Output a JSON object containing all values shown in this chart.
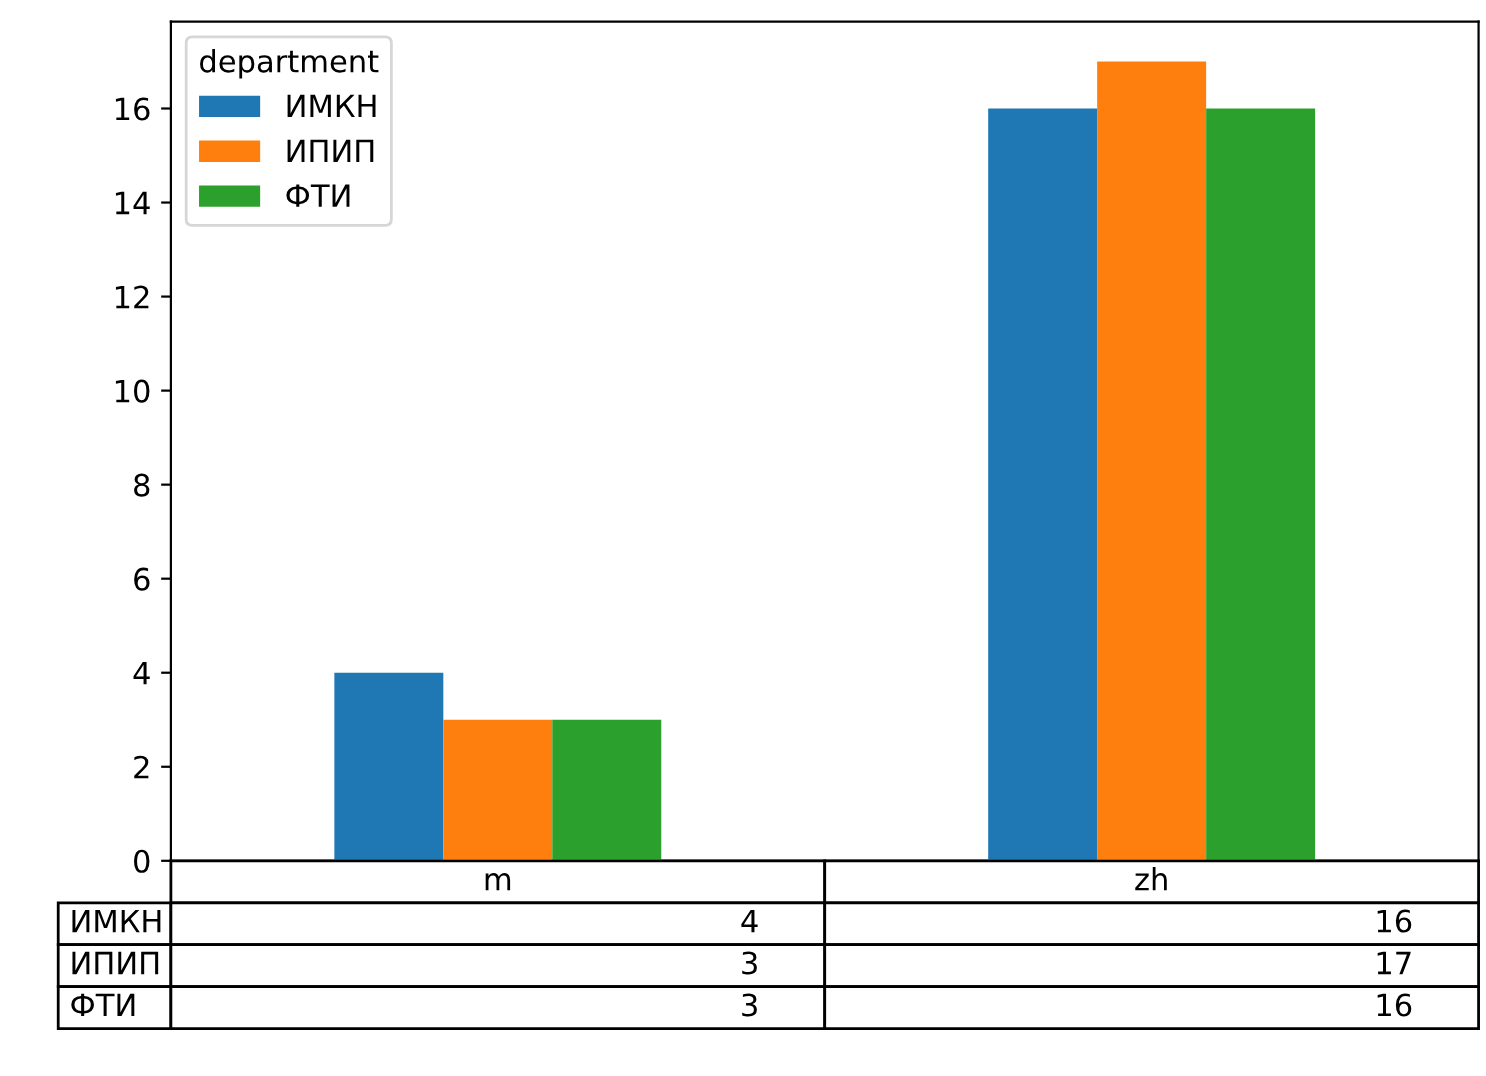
{
  "chart_data": {
    "type": "bar",
    "categories": [
      "m",
      "zh"
    ],
    "series": [
      {
        "name": "ИМКН",
        "color": "#1f77b4",
        "values": [
          4,
          16
        ]
      },
      {
        "name": "ИПИП",
        "color": "#ff7f0e",
        "values": [
          3,
          17
        ]
      },
      {
        "name": "ФТИ",
        "color": "#2ca02c",
        "values": [
          3,
          16
        ]
      }
    ],
    "legend_title": "department",
    "legend": "top left",
    "data_labels": true,
    "grid": false,
    "ylim": [
      0,
      17.85
    ],
    "yticks": [
      0,
      2,
      4,
      6,
      8,
      10,
      12,
      14,
      16
    ]
  }
}
